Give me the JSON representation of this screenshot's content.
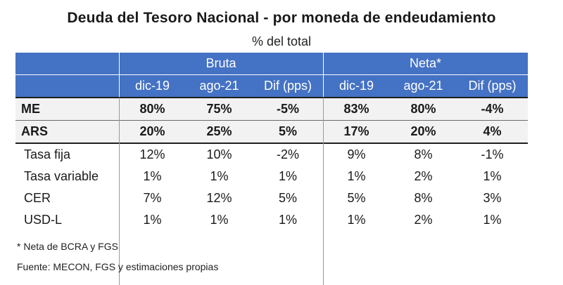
{
  "title": "Deuda del Tesoro Nacional - por moneda de endeudamiento",
  "subtitle": "% del total",
  "groups": {
    "bruta": "Bruta",
    "neta": "Neta*"
  },
  "columns": [
    "dic-19",
    "ago-21",
    "Dif (pps)",
    "dic-19",
    "ago-21",
    "Dif (pps)"
  ],
  "rows": [
    {
      "label": "ME",
      "values": [
        "80%",
        "75%",
        "-5%",
        "83%",
        "80%",
        "-4%"
      ]
    },
    {
      "label": "ARS",
      "values": [
        "20%",
        "25%",
        "5%",
        "17%",
        "20%",
        "4%"
      ]
    },
    {
      "label": "Tasa fija",
      "values": [
        "12%",
        "10%",
        "-2%",
        "9%",
        "8%",
        "-1%"
      ]
    },
    {
      "label": "Tasa variable",
      "values": [
        "1%",
        "1%",
        "1%",
        "1%",
        "2%",
        "1%"
      ]
    },
    {
      "label": "CER",
      "values": [
        "7%",
        "12%",
        "5%",
        "5%",
        "8%",
        "3%"
      ]
    },
    {
      "label": "USD-L",
      "values": [
        "1%",
        "1%",
        "1%",
        "1%",
        "2%",
        "1%"
      ]
    }
  ],
  "footnotes": {
    "note": "* Neta de BCRA y FGS",
    "source": "Fuente: MECON, FGS y estimaciones propias"
  },
  "colors": {
    "header_bg": "#4472c4",
    "bold_row_bg": "#f2f2f2"
  }
}
